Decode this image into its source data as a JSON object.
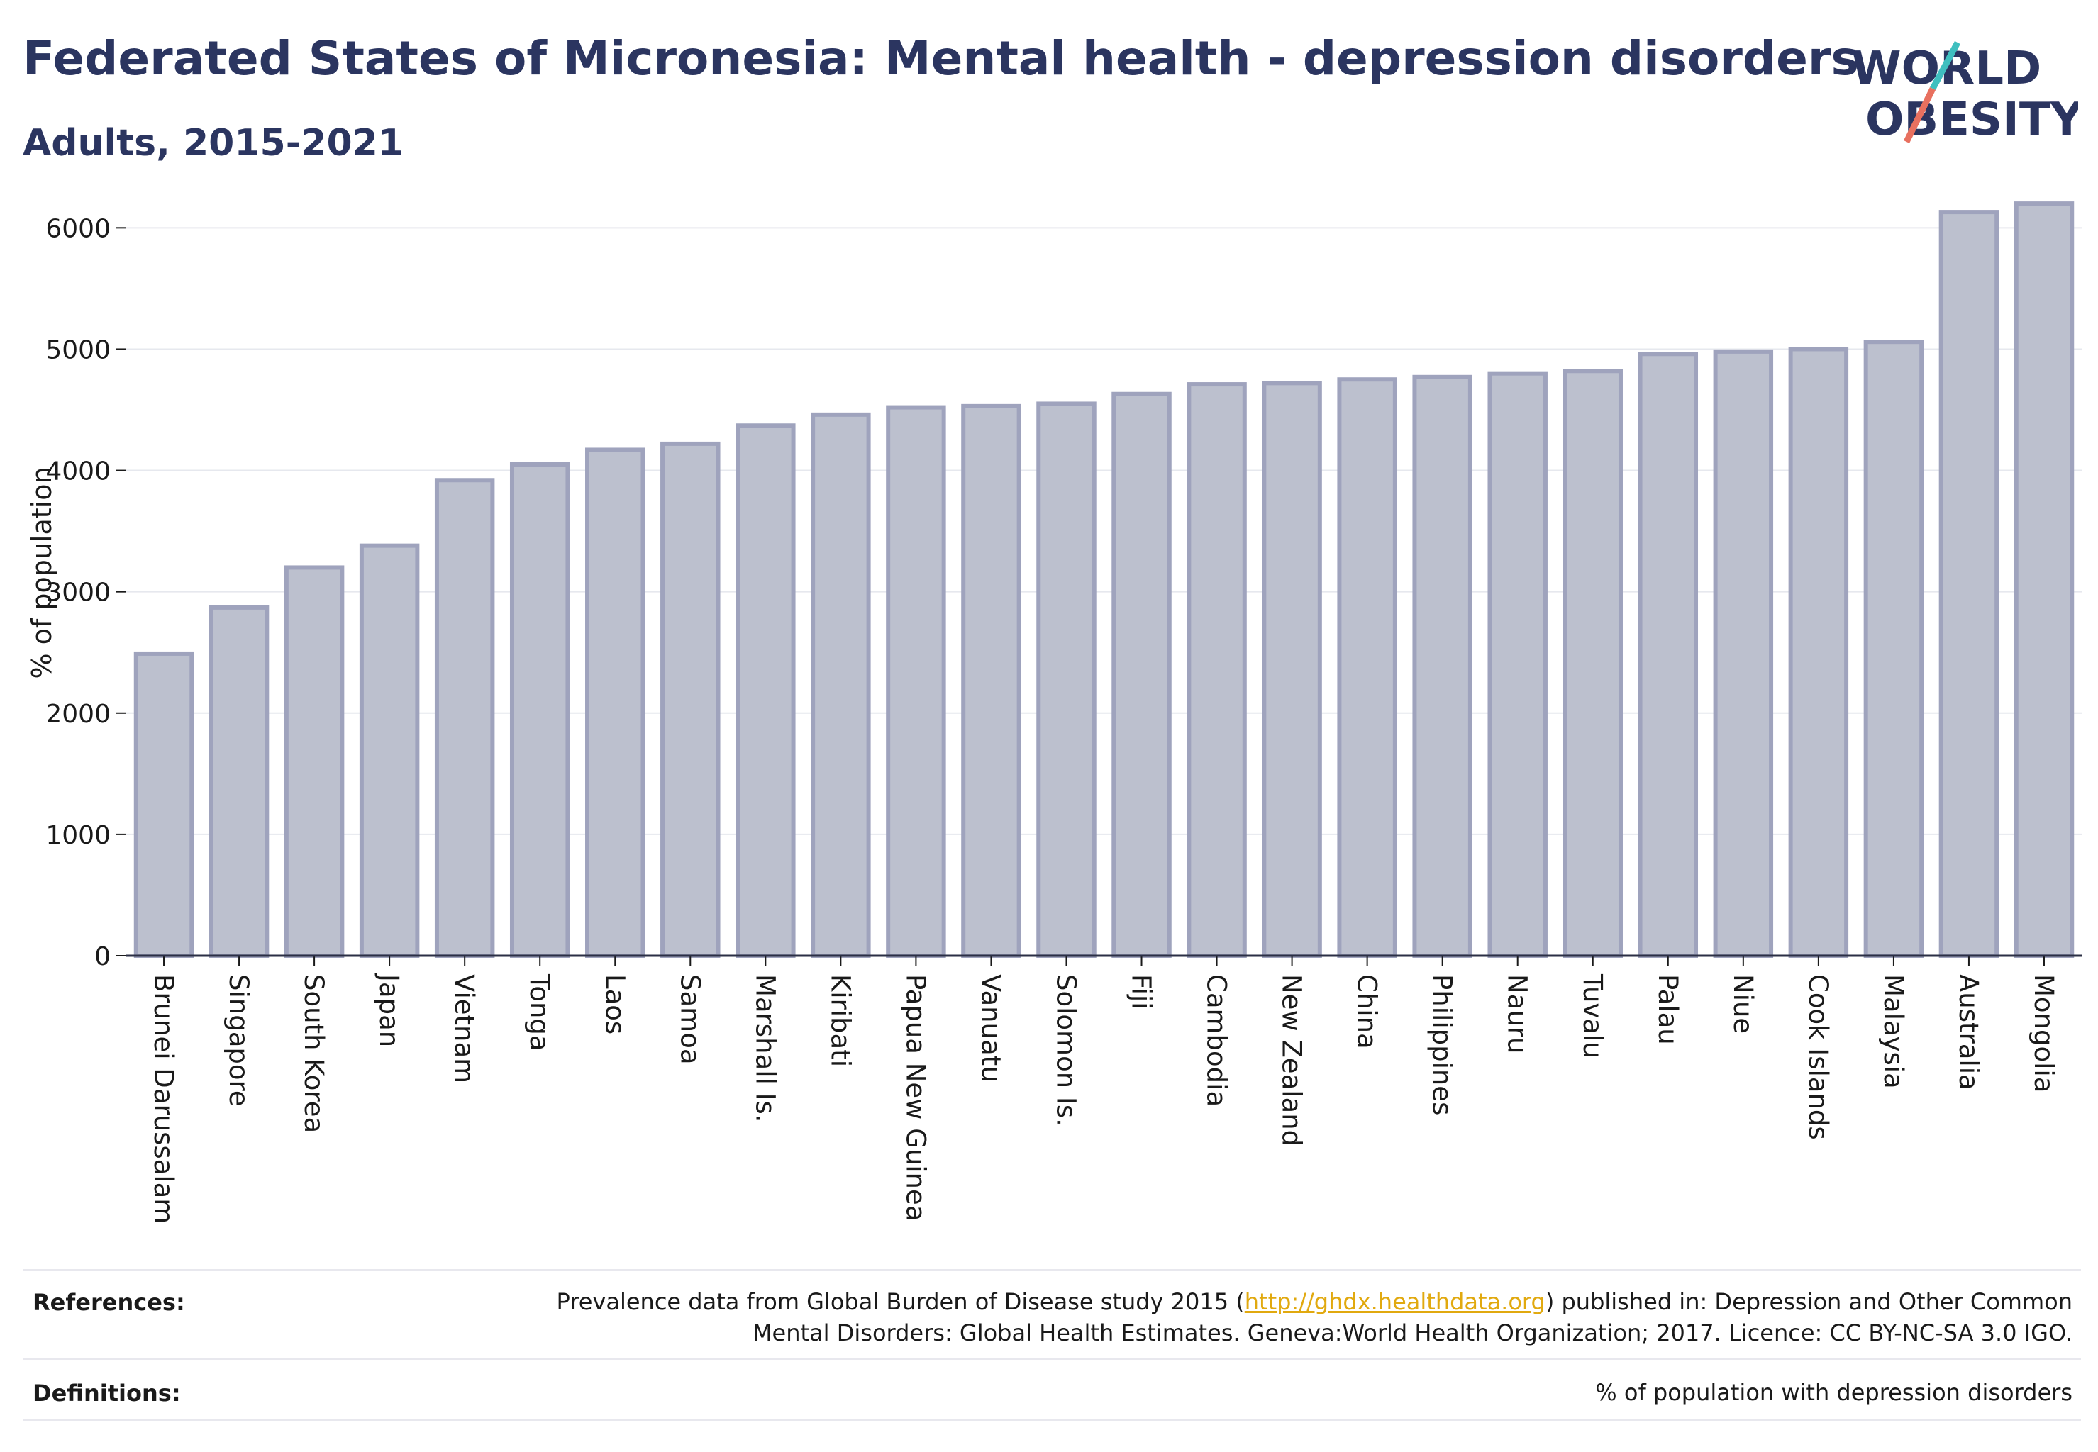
{
  "header": {
    "title": "Federated States of Micronesia: Mental health - depression disorders",
    "subtitle": "Adults, 2015-2021"
  },
  "logo": {
    "line1": "WORLD",
    "line2": "OBESITY"
  },
  "colors": {
    "bar_fill": "#bcc0ce",
    "bar_stroke": "#9fa3bd",
    "title": "#2b3560",
    "grid": "#e6e8ee",
    "link": "#e1a90f",
    "logo_teal": "#3fbfbf",
    "logo_coral": "#e8705f"
  },
  "chart_data": {
    "type": "bar",
    "title": "",
    "xlabel": "",
    "ylabel": "% of population",
    "ylim": [
      0,
      6300
    ],
    "yticks": [
      0,
      1000,
      2000,
      3000,
      4000,
      5000,
      6000
    ],
    "grid": true,
    "categories": [
      "Brunei Darussalam",
      "Singapore",
      "South Korea",
      "Japan",
      "Vietnam",
      "Tonga",
      "Laos",
      "Samoa",
      "Marshall Is.",
      "Kiribati",
      "Papua New Guinea",
      "Vanuatu",
      "Solomon Is.",
      "Fiji",
      "Cambodia",
      "New Zealand",
      "China",
      "Philippines",
      "Nauru",
      "Tuvalu",
      "Palau",
      "Niue",
      "Cook Islands",
      "Malaysia",
      "Australia",
      "Mongolia"
    ],
    "values": [
      2490,
      2870,
      3200,
      3380,
      3920,
      4050,
      4170,
      4220,
      4370,
      4460,
      4520,
      4530,
      4550,
      4630,
      4710,
      4720,
      4750,
      4770,
      4800,
      4820,
      4960,
      4980,
      5000,
      5060,
      6130,
      6200
    ]
  },
  "footer": {
    "references_label": "References:",
    "references_pre": "Prevalence data from Global Burden of Disease study 2015 (",
    "references_link": "http://ghdx.healthdata.org",
    "references_post": ") published in: Depression and Other Common",
    "references_line2": "Mental Disorders: Global Health Estimates. Geneva:World Health Organization; 2017. Licence: CC BY-NC-SA 3.0 IGO.",
    "definitions_label": "Definitions:",
    "definitions_text": "% of population with depression disorders"
  }
}
